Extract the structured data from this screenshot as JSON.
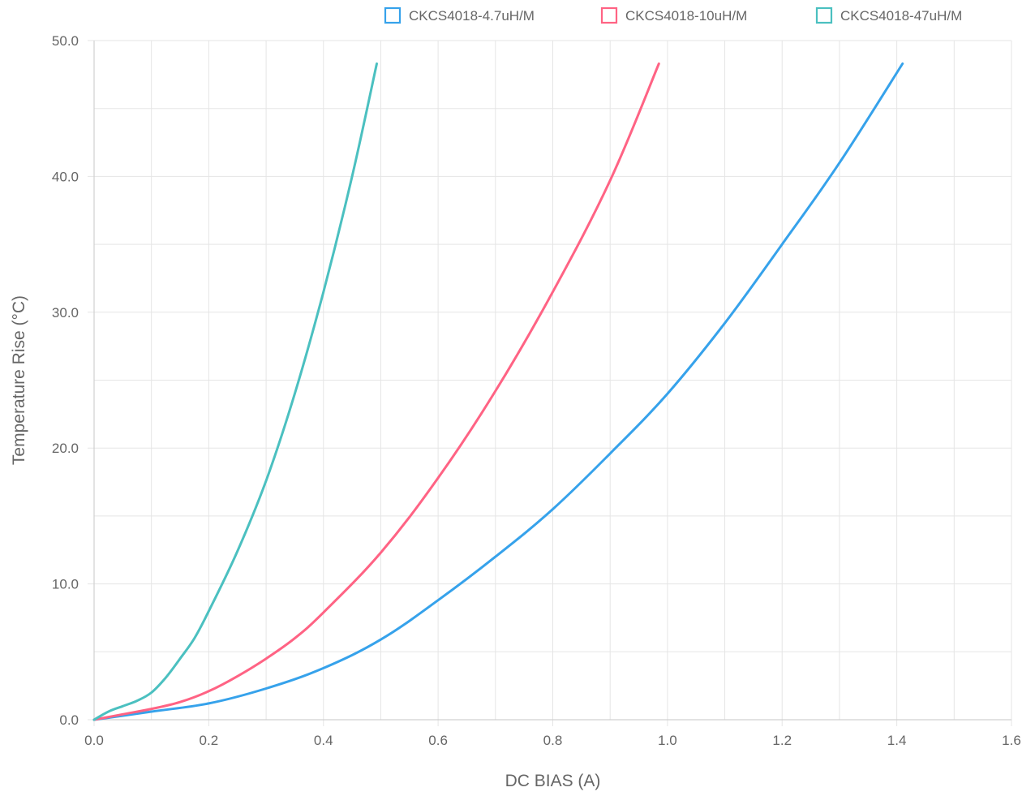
{
  "chart_data": {
    "type": "line",
    "title": "",
    "xlabel": "DC BIAS (A)",
    "ylabel": "Temperature Rise (°C)",
    "xlim": [
      0.0,
      1.6
    ],
    "ylim": [
      0.0,
      50.0
    ],
    "x_ticks": [
      "0.0",
      "0.2",
      "0.4",
      "0.6",
      "0.8",
      "1.0",
      "1.2",
      "1.4",
      "1.6"
    ],
    "y_ticks": [
      "0.0",
      "10.0",
      "20.0",
      "30.0",
      "40.0",
      "50.0"
    ],
    "grid": true,
    "legend_position": "top-right",
    "series": [
      {
        "name": "CKCS4018-4.7uH/M",
        "color": "#36a2eb",
        "points": [
          [
            0.0,
            0.0
          ],
          [
            0.1,
            0.6
          ],
          [
            0.2,
            1.2
          ],
          [
            0.3,
            2.3
          ],
          [
            0.4,
            3.8
          ],
          [
            0.5,
            5.9
          ],
          [
            0.6,
            8.8
          ],
          [
            0.7,
            12.0
          ],
          [
            0.8,
            15.5
          ],
          [
            0.9,
            19.6
          ],
          [
            1.0,
            24.0
          ],
          [
            1.1,
            29.2
          ],
          [
            1.2,
            35.0
          ],
          [
            1.3,
            41.0
          ],
          [
            1.41,
            48.3
          ]
        ]
      },
      {
        "name": "CKCS4018-10uH/M",
        "color": "#ff6384",
        "points": [
          [
            0.0,
            0.0
          ],
          [
            0.05,
            0.4
          ],
          [
            0.1,
            0.8
          ],
          [
            0.15,
            1.3
          ],
          [
            0.2,
            2.1
          ],
          [
            0.25,
            3.2
          ],
          [
            0.3,
            4.5
          ],
          [
            0.35,
            6.0
          ],
          [
            0.4,
            7.9
          ],
          [
            0.5,
            12.3
          ],
          [
            0.6,
            17.8
          ],
          [
            0.7,
            24.2
          ],
          [
            0.8,
            31.5
          ],
          [
            0.9,
            39.7
          ],
          [
            0.985,
            48.3
          ]
        ]
      },
      {
        "name": "CKCS4018-47uH/M",
        "color": "#4bc0c0",
        "points": [
          [
            0.0,
            0.0
          ],
          [
            0.025,
            0.6
          ],
          [
            0.05,
            1.0
          ],
          [
            0.075,
            1.4
          ],
          [
            0.1,
            2.0
          ],
          [
            0.125,
            3.1
          ],
          [
            0.15,
            4.5
          ],
          [
            0.175,
            6.0
          ],
          [
            0.2,
            8.0
          ],
          [
            0.25,
            12.4
          ],
          [
            0.3,
            17.6
          ],
          [
            0.35,
            24.0
          ],
          [
            0.4,
            31.5
          ],
          [
            0.45,
            40.0
          ],
          [
            0.493,
            48.3
          ]
        ]
      }
    ]
  }
}
